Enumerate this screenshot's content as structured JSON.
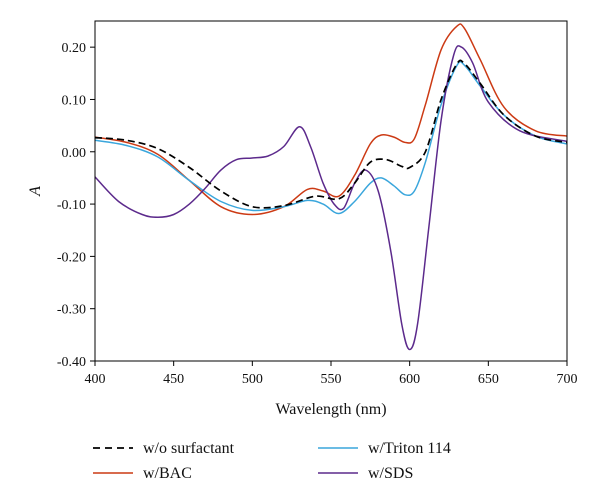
{
  "chart_data": {
    "type": "line",
    "title": "",
    "xlabel": "Wavelength (nm)",
    "ylabel": "A",
    "xlim": [
      400,
      700
    ],
    "ylim": [
      -0.4,
      0.25
    ],
    "x_ticks": [
      400,
      450,
      500,
      550,
      600,
      650,
      700
    ],
    "y_ticks": [
      0.2,
      0.1,
      0.0,
      -0.1,
      -0.2,
      -0.3,
      -0.4
    ],
    "x_tick_labels": [
      "400",
      "450",
      "500",
      "550",
      "600",
      "650",
      "700"
    ],
    "y_tick_labels": [
      "0.20",
      "0.10",
      "0.00",
      "-0.10",
      "-0.20",
      "-0.30",
      "-0.40"
    ],
    "grid": false,
    "legend_position": "bottom",
    "series": [
      {
        "name": "w/o surfactant",
        "color": "#000000",
        "dash": "dashed",
        "x": [
          400,
          420,
          440,
          460,
          480,
          500,
          520,
          540,
          555,
          565,
          575,
          585,
          595,
          600,
          610,
          620,
          630,
          635,
          645,
          660,
          680,
          700
        ],
        "y": [
          0.027,
          0.022,
          0.006,
          -0.03,
          -0.075,
          -0.105,
          -0.103,
          -0.085,
          -0.09,
          -0.06,
          -0.02,
          -0.015,
          -0.028,
          -0.03,
          0.0,
          0.1,
          0.168,
          0.168,
          0.13,
          0.07,
          0.03,
          0.018
        ]
      },
      {
        "name": "w/BAC",
        "color": "#cc3a14",
        "dash": "solid",
        "x": [
          400,
          420,
          440,
          460,
          480,
          500,
          520,
          535,
          545,
          555,
          565,
          575,
          582,
          590,
          597,
          603,
          610,
          620,
          630,
          635,
          645,
          660,
          680,
          700
        ],
        "y": [
          0.028,
          0.018,
          -0.005,
          -0.055,
          -0.105,
          -0.12,
          -0.105,
          -0.072,
          -0.075,
          -0.085,
          -0.045,
          0.015,
          0.032,
          0.028,
          0.018,
          0.025,
          0.09,
          0.195,
          0.24,
          0.235,
          0.175,
          0.085,
          0.04,
          0.03
        ]
      },
      {
        "name": "w/Triton 114",
        "color": "#3aa6dc",
        "dash": "solid",
        "x": [
          400,
          420,
          440,
          460,
          480,
          500,
          520,
          535,
          545,
          555,
          565,
          575,
          582,
          590,
          597,
          603,
          610,
          620,
          630,
          635,
          645,
          660,
          680,
          700
        ],
        "y": [
          0.022,
          0.012,
          -0.01,
          -0.055,
          -0.095,
          -0.112,
          -0.105,
          -0.093,
          -0.1,
          -0.118,
          -0.095,
          -0.06,
          -0.05,
          -0.065,
          -0.082,
          -0.075,
          -0.02,
          0.09,
          0.165,
          0.165,
          0.125,
          0.07,
          0.03,
          0.015
        ]
      },
      {
        "name": "w/SDS",
        "color": "#5c2a8c",
        "dash": "solid",
        "x": [
          400,
          415,
          430,
          440,
          450,
          460,
          470,
          480,
          490,
          500,
          510,
          520,
          530,
          537,
          545,
          552,
          558,
          565,
          572,
          580,
          588,
          595,
          600,
          605,
          612,
          620,
          628,
          633,
          640,
          650,
          670,
          700
        ],
        "y": [
          -0.048,
          -0.095,
          -0.12,
          -0.125,
          -0.12,
          -0.1,
          -0.07,
          -0.035,
          -0.015,
          -0.012,
          -0.008,
          0.01,
          0.048,
          0.01,
          -0.06,
          -0.1,
          -0.108,
          -0.06,
          -0.035,
          -0.075,
          -0.19,
          -0.33,
          -0.378,
          -0.33,
          -0.15,
          0.06,
          0.185,
          0.2,
          0.17,
          0.095,
          0.04,
          0.02
        ]
      }
    ]
  }
}
